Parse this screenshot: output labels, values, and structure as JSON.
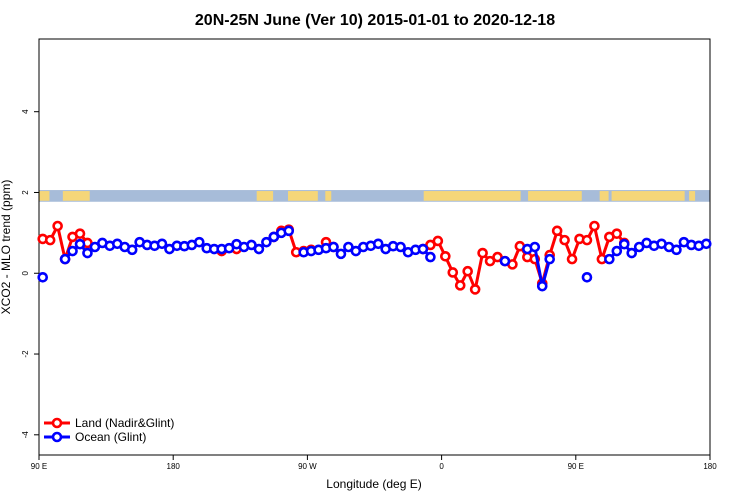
{
  "chart_data": {
    "type": "line",
    "title": "20N-25N June (Ver 10)   2015-01-01 to 2020-12-18",
    "xlabel": "Longitude (deg E)",
    "ylabel": "XCO2 - MLO trend (ppm)",
    "xlim": [
      90,
      540
    ],
    "ylim": [
      -4.5,
      5.8
    ],
    "x_ticks": [
      {
        "value": 90,
        "label": "90 E"
      },
      {
        "value": 180,
        "label": "180"
      },
      {
        "value": 270,
        "label": "90 W"
      },
      {
        "value": 360,
        "label": "0"
      },
      {
        "value": 450,
        "label": "90 E"
      },
      {
        "value": 540,
        "label": "180"
      }
    ],
    "y_ticks": [
      {
        "value": -4,
        "label": "-4"
      },
      {
        "value": -2,
        "label": "-2"
      },
      {
        "value": 0,
        "label": "0"
      },
      {
        "value": 2,
        "label": "2"
      },
      {
        "value": 4,
        "label": "4"
      }
    ],
    "grid": false,
    "legend_position": "bottom-left",
    "land_mask_band": {
      "y_range": [
        1.77,
        2.06
      ],
      "ocean_color": "#a7bcd9",
      "land_color": "#f5d679"
    },
    "series": [
      {
        "name": "Land (Nadir&Glint)",
        "color": "#ff0000",
        "x": [
          92.5,
          97.5,
          102.5,
          107.5,
          112.5,
          117.5,
          122.5,
          212.5,
          222.5,
          247.5,
          252.5,
          257.5,
          262.5,
          267.5,
          272.5,
          282.5,
          287.5,
          347.5,
          352.5,
          357.5,
          362.5,
          367.5,
          372.5,
          377.5,
          382.5,
          387.5,
          392.5,
          397.5,
          402.5,
          407.5,
          412.5,
          417.5,
          422.5,
          427.5,
          432.5,
          437.5,
          442.5,
          447.5,
          452.5,
          457.5,
          462.5,
          467.5,
          472.5,
          477.5,
          482.5
        ],
        "y": [
          0.85,
          0.82,
          1.17,
          0.35,
          0.9,
          0.98,
          0.75,
          0.55,
          0.6,
          0.9,
          1.05,
          1.08,
          0.52,
          0.55,
          0.58,
          0.77,
          0.65,
          0.6,
          0.7,
          0.8,
          0.42,
          0.02,
          -0.3,
          0.05,
          -0.4,
          0.5,
          0.3,
          0.4,
          0.3,
          0.22,
          0.67,
          0.4,
          0.35,
          -0.25,
          0.45,
          1.05,
          0.82,
          0.35,
          0.85,
          0.82,
          1.17,
          0.35,
          0.9,
          0.98,
          0.75
        ]
      },
      {
        "name": "Ocean (Glint)",
        "color": "#0000ff",
        "x": [
          92.5,
          107.5,
          112.5,
          117.5,
          122.5,
          127.5,
          132.5,
          137.5,
          142.5,
          147.5,
          152.5,
          157.5,
          162.5,
          167.5,
          172.5,
          177.5,
          182.5,
          187.5,
          192.5,
          197.5,
          202.5,
          207.5,
          212.5,
          217.5,
          222.5,
          227.5,
          232.5,
          237.5,
          242.5,
          247.5,
          252.5,
          257.5,
          267.5,
          272.5,
          277.5,
          282.5,
          287.5,
          292.5,
          297.5,
          302.5,
          307.5,
          312.5,
          317.5,
          322.5,
          327.5,
          332.5,
          337.5,
          342.5,
          347.5,
          352.5,
          402.5,
          417.5,
          422.5,
          427.5,
          432.5,
          457.5,
          472.5,
          477.5,
          482.5,
          487.5,
          492.5,
          497.5,
          502.5,
          507.5,
          512.5,
          517.5,
          522.5,
          527.5,
          532.5,
          537.5
        ],
        "y": [
          -0.1,
          0.35,
          0.55,
          0.72,
          0.5,
          0.65,
          0.75,
          0.68,
          0.73,
          0.65,
          0.58,
          0.77,
          0.7,
          0.68,
          0.73,
          0.6,
          0.68,
          0.67,
          0.7,
          0.77,
          0.62,
          0.6,
          0.6,
          0.62,
          0.72,
          0.65,
          0.7,
          0.6,
          0.77,
          0.9,
          1.0,
          1.05,
          0.52,
          0.55,
          0.58,
          0.62,
          0.65,
          0.48,
          0.65,
          0.55,
          0.65,
          0.68,
          0.73,
          0.6,
          0.67,
          0.65,
          0.52,
          0.58,
          0.6,
          0.4,
          0.3,
          0.6,
          0.65,
          -0.32,
          0.35,
          -0.1,
          0.35,
          0.55,
          0.72,
          0.5,
          0.65,
          0.75,
          0.68,
          0.73,
          0.65,
          0.58,
          0.77,
          0.7,
          0.68,
          0.73
        ]
      }
    ]
  }
}
